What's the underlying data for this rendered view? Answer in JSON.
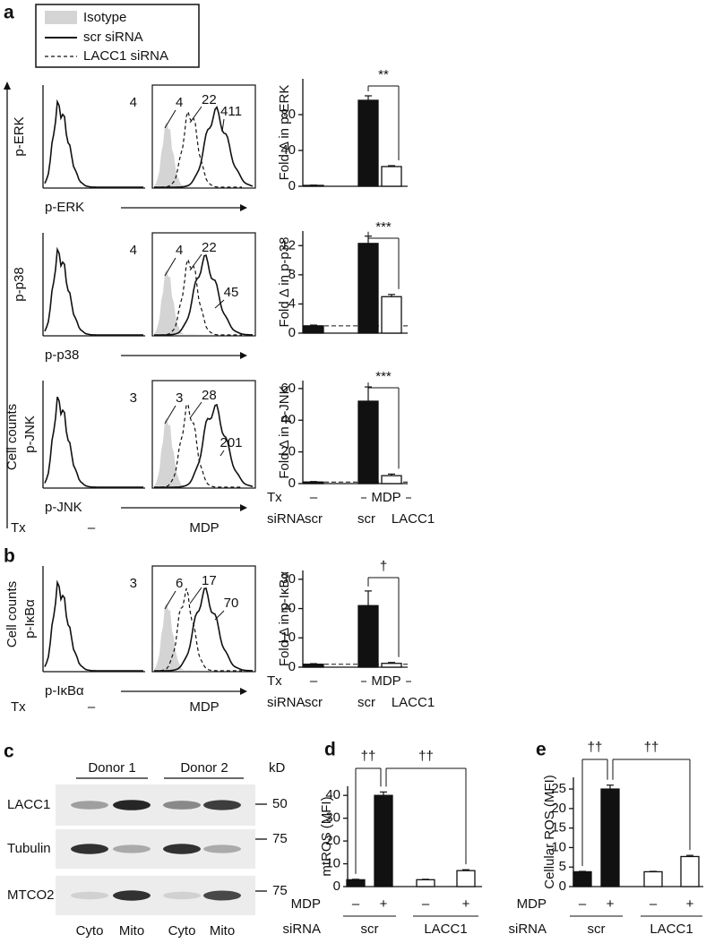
{
  "panel_labels": [
    "a",
    "b",
    "c",
    "d",
    "e"
  ],
  "legend": [
    "Isotype",
    "scr siRNA",
    "LACC1 siRNA"
  ],
  "flow": {
    "y_axis_label": "Cell counts",
    "tx_label": "Tx",
    "tx_values": [
      "–",
      "MDP"
    ],
    "rows": [
      {
        "y_label": "p-ERK",
        "x_label": "p-ERK",
        "unstim_mfi": 4,
        "mdp_mfi": [
          4,
          22,
          411
        ]
      },
      {
        "y_label": "p-p38",
        "x_label": "p-p38",
        "unstim_mfi": 4,
        "mdp_mfi": [
          4,
          22,
          45
        ]
      },
      {
        "y_label": "p-JNK",
        "x_label": "p-JNK",
        "unstim_mfi": 3,
        "mdp_mfi": [
          3,
          28,
          201
        ]
      },
      {
        "y_label": "p-IκBα",
        "x_label": "p-IκBα",
        "unstim_mfi": 3,
        "mdp_mfi": [
          6,
          17,
          70
        ]
      }
    ]
  },
  "chart_data": [
    {
      "type": "bar",
      "ylabel": "Fold Δ in p-ERK",
      "values": [
        1,
        96,
        22
      ],
      "errors": [
        0.3,
        5,
        1
      ],
      "colors": [
        "#111111",
        "#111111",
        "#ffffff"
      ],
      "ylim": [
        0,
        120
      ],
      "yticks": [
        0,
        40,
        80
      ],
      "significance": [
        "**"
      ]
    },
    {
      "type": "bar",
      "ylabel": "Fold Δ in p-p38",
      "values": [
        1,
        12.3,
        5
      ],
      "errors": [
        0.1,
        1,
        0.3
      ],
      "colors": [
        "#111111",
        "#111111",
        "#ffffff"
      ],
      "ylim": [
        0,
        14
      ],
      "yticks": [
        0,
        4,
        8,
        12
      ],
      "reference_line": 1,
      "significance": [
        "***"
      ]
    },
    {
      "type": "bar",
      "ylabel": "Fold Δ in p-JNK",
      "values": [
        1,
        52,
        5
      ],
      "errors": [
        0.3,
        9,
        1
      ],
      "colors": [
        "#111111",
        "#111111",
        "#ffffff"
      ],
      "ylim": [
        0,
        65
      ],
      "yticks": [
        0,
        20,
        40,
        60
      ],
      "reference_line": 1,
      "significance": [
        "***"
      ],
      "row_labels": [
        "Tx",
        "siRNA"
      ],
      "tx_labels": [
        "–",
        "MDP"
      ],
      "categories": [
        "scr",
        "scr",
        "LACC1"
      ]
    },
    {
      "type": "bar",
      "ylabel": "Fold Δ in p-IκBα",
      "values": [
        1,
        21,
        1.3
      ],
      "errors": [
        0.2,
        5,
        0.3
      ],
      "colors": [
        "#111111",
        "#111111",
        "#ffffff"
      ],
      "ylim": [
        0,
        33
      ],
      "yticks": [
        0,
        10,
        20,
        30
      ],
      "reference_line": 1,
      "significance": [
        "†"
      ],
      "row_labels": [
        "Tx",
        "siRNA"
      ],
      "tx_labels": [
        "–",
        "MDP"
      ],
      "categories": [
        "scr",
        "scr",
        "LACC1"
      ]
    },
    {
      "type": "bar",
      "ylabel": "mtROS (MFI)",
      "values": [
        3,
        40,
        3,
        7
      ],
      "errors": [
        0.2,
        1.5,
        0.2,
        0.4
      ],
      "colors": [
        "#111111",
        "#111111",
        "#ffffff",
        "#ffffff"
      ],
      "ylim": [
        0,
        44
      ],
      "yticks": [
        0,
        10,
        20,
        30,
        40
      ],
      "significance": [
        "††",
        "††"
      ],
      "row_labels": [
        "MDP",
        "siRNA"
      ],
      "mdp_labels": [
        "–",
        "+",
        "–",
        "+"
      ],
      "sirna_groups": [
        "scr",
        "LACC1"
      ]
    },
    {
      "type": "bar",
      "ylabel": "Cellular ROS (MFI)",
      "values": [
        3.8,
        25,
        3.8,
        7.7
      ],
      "errors": [
        0.1,
        1,
        0.1,
        0.3
      ],
      "colors": [
        "#111111",
        "#111111",
        "#ffffff",
        "#ffffff"
      ],
      "ylim": [
        0,
        28
      ],
      "yticks": [
        0,
        5,
        10,
        15,
        20,
        25
      ],
      "significance": [
        "††",
        "††"
      ],
      "row_labels": [
        "MDP",
        "siRNA"
      ],
      "mdp_labels": [
        "–",
        "+",
        "–",
        "+"
      ],
      "sirna_groups": [
        "scr",
        "LACC1"
      ]
    }
  ],
  "blot": {
    "donors": [
      "Donor 1",
      "Donor 2"
    ],
    "unit": "kD",
    "rows": [
      {
        "label": "LACC1",
        "marker": 50
      },
      {
        "label": "Tubulin",
        "marker": 75
      },
      {
        "label": "MTCO2",
        "marker": 75
      }
    ],
    "lanes": [
      "Cyto",
      "Mito",
      "Cyto",
      "Mito"
    ]
  }
}
